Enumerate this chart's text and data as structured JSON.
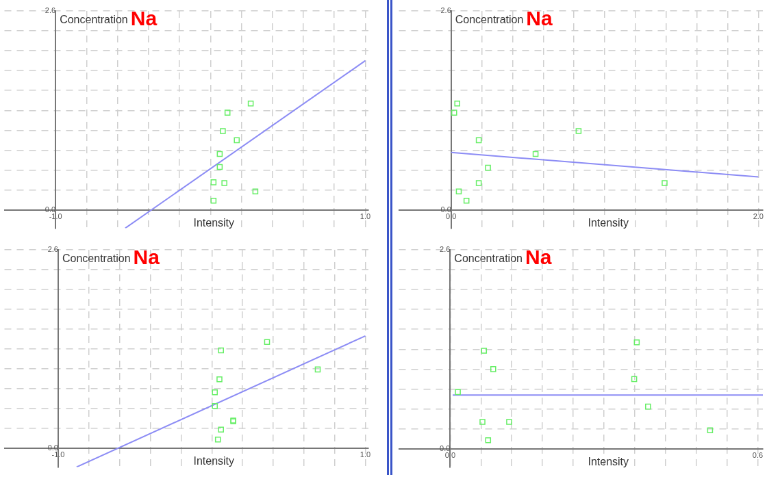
{
  "chart_data": [
    {
      "type": "scatter",
      "title": "Na",
      "xlabel": "Intensity",
      "ylabel": "Concentration",
      "grid": true,
      "xlim": [
        -1.33,
        1.02
      ],
      "ylim": [
        -0.24,
        2.6
      ],
      "xticks": [
        {
          "value": -1.0,
          "label": "-1.0"
        },
        {
          "value": -0.8,
          "label": null
        },
        {
          "value": -0.6,
          "label": null
        },
        {
          "value": -0.4,
          "label": null
        },
        {
          "value": -0.2,
          "label": null
        },
        {
          "value": 0,
          "label": null
        },
        {
          "value": 0.2,
          "label": null
        },
        {
          "value": 0.4,
          "label": null
        },
        {
          "value": 0.6,
          "label": null
        },
        {
          "value": 0.8,
          "label": null
        },
        {
          "value": 1.0,
          "label": "1.0"
        }
      ],
      "yticks": [
        {
          "value": 0,
          "label": "0.0"
        },
        {
          "value": 0.26,
          "label": null
        },
        {
          "value": 0.52,
          "label": null
        },
        {
          "value": 0.78,
          "label": null
        },
        {
          "value": 1.04,
          "label": null
        },
        {
          "value": 1.3,
          "label": null
        },
        {
          "value": 1.56,
          "label": null
        },
        {
          "value": 1.82,
          "label": null
        },
        {
          "value": 2.08,
          "label": null
        },
        {
          "value": 2.34,
          "label": null
        },
        {
          "value": 2.6,
          "label": "2.6"
        }
      ],
      "series": [
        {
          "type": "scatter",
          "marker": "square",
          "color": "#66ee66",
          "x": [
            0.26,
            0.11,
            0.08,
            0.17,
            0.06,
            0.06,
            0.02,
            0.09,
            0.29,
            0.02
          ],
          "values": [
            1.39,
            1.27,
            1.03,
            0.91,
            0.73,
            0.56,
            0.36,
            0.35,
            0.24,
            0.12
          ]
        },
        {
          "type": "line",
          "color": "#8c8cf5",
          "x": [
            -0.55,
            1.0
          ],
          "values": [
            -0.24,
            1.95
          ]
        }
      ]
    },
    {
      "type": "scatter",
      "title": "Na",
      "xlabel": "Intensity",
      "ylabel": "Concentration",
      "grid": true,
      "xlim": [
        -0.34,
        2.03
      ],
      "ylim": [
        -0.24,
        2.6
      ],
      "xticks": [
        {
          "value": 0,
          "label": "0.0"
        },
        {
          "value": 0.2,
          "label": null
        },
        {
          "value": 0.4,
          "label": null
        },
        {
          "value": 0.6,
          "label": null
        },
        {
          "value": 0.8,
          "label": null
        },
        {
          "value": 1.0,
          "label": null
        },
        {
          "value": 1.2,
          "label": null
        },
        {
          "value": 1.4,
          "label": null
        },
        {
          "value": 1.6,
          "label": null
        },
        {
          "value": 1.8,
          "label": null
        },
        {
          "value": 2.0,
          "label": "2.0"
        }
      ],
      "yticks": [
        {
          "value": 0,
          "label": "0.0"
        },
        {
          "value": 0.26,
          "label": null
        },
        {
          "value": 0.52,
          "label": null
        },
        {
          "value": 0.78,
          "label": null
        },
        {
          "value": 1.04,
          "label": null
        },
        {
          "value": 1.3,
          "label": null
        },
        {
          "value": 1.56,
          "label": null
        },
        {
          "value": 1.82,
          "label": null
        },
        {
          "value": 2.08,
          "label": null
        },
        {
          "value": 2.34,
          "label": null
        },
        {
          "value": 2.6,
          "label": "2.6"
        }
      ],
      "series": [
        {
          "type": "scatter",
          "marker": "square",
          "color": "#66ee66",
          "x": [
            0.04,
            0.02,
            0.18,
            0.83,
            0.55,
            0.24,
            0.18,
            1.39,
            0.05,
            0.1
          ],
          "values": [
            1.39,
            1.27,
            0.91,
            1.03,
            0.73,
            0.55,
            0.35,
            0.35,
            0.24,
            0.12
          ]
        },
        {
          "type": "line",
          "color": "#8c8cf5",
          "x": [
            0.0,
            2.0
          ],
          "values": [
            0.75,
            0.43
          ]
        }
      ]
    },
    {
      "type": "scatter",
      "title": "Na",
      "xlabel": "Intensity",
      "ylabel": "Concentration",
      "grid": true,
      "xlim": [
        -1.35,
        1.02
      ],
      "ylim": [
        -0.25,
        2.6
      ],
      "xticks": [
        {
          "value": -1.0,
          "label": "-1.0"
        },
        {
          "value": -0.8,
          "label": null
        },
        {
          "value": -0.6,
          "label": null
        },
        {
          "value": -0.4,
          "label": null
        },
        {
          "value": -0.2,
          "label": null
        },
        {
          "value": 0,
          "label": null
        },
        {
          "value": 0.2,
          "label": null
        },
        {
          "value": 0.4,
          "label": null
        },
        {
          "value": 0.6,
          "label": null
        },
        {
          "value": 0.8,
          "label": null
        },
        {
          "value": 1.0,
          "label": "1.0"
        }
      ],
      "yticks": [
        {
          "value": 0,
          "label": "0.0"
        },
        {
          "value": 0.26,
          "label": null
        },
        {
          "value": 0.52,
          "label": null
        },
        {
          "value": 0.78,
          "label": null
        },
        {
          "value": 1.04,
          "label": null
        },
        {
          "value": 1.3,
          "label": null
        },
        {
          "value": 1.56,
          "label": null
        },
        {
          "value": 1.82,
          "label": null
        },
        {
          "value": 2.08,
          "label": null
        },
        {
          "value": 2.34,
          "label": null
        },
        {
          "value": 2.6,
          "label": "2.6"
        }
      ],
      "series": [
        {
          "type": "scatter",
          "marker": "square",
          "color": "#66ee66",
          "x": [
            0.36,
            0.06,
            0.69,
            0.05,
            0.02,
            0.02,
            0.14,
            0.14,
            0.06,
            0.04
          ],
          "values": [
            1.39,
            1.28,
            1.03,
            0.9,
            0.73,
            0.55,
            0.36,
            0.35,
            0.24,
            0.11
          ]
        },
        {
          "type": "line",
          "color": "#8c8cf5",
          "x": [
            -0.88,
            1.0
          ],
          "values": [
            -0.25,
            1.47
          ]
        }
      ]
    },
    {
      "type": "scatter",
      "title": "Na",
      "xlabel": "Intensity",
      "ylabel": "Concentration",
      "grid": true,
      "xlim": [
        -0.1,
        0.61
      ],
      "ylim": [
        -0.24,
        2.6
      ],
      "xticks": [
        {
          "value": 0,
          "label": "0.0"
        },
        {
          "value": 0.06,
          "label": null
        },
        {
          "value": 0.12,
          "label": null
        },
        {
          "value": 0.18,
          "label": null
        },
        {
          "value": 0.24,
          "label": null
        },
        {
          "value": 0.3,
          "label": null
        },
        {
          "value": 0.36,
          "label": null
        },
        {
          "value": 0.42,
          "label": null
        },
        {
          "value": 0.48,
          "label": null
        },
        {
          "value": 0.54,
          "label": null
        },
        {
          "value": 0.6,
          "label": "0.6"
        }
      ],
      "yticks": [
        {
          "value": 0,
          "label": "0.0"
        },
        {
          "value": 0.26,
          "label": null
        },
        {
          "value": 0.52,
          "label": null
        },
        {
          "value": 0.78,
          "label": null
        },
        {
          "value": 1.04,
          "label": null
        },
        {
          "value": 1.3,
          "label": null
        },
        {
          "value": 1.56,
          "label": null
        },
        {
          "value": 1.82,
          "label": null
        },
        {
          "value": 2.08,
          "label": null
        },
        {
          "value": 2.34,
          "label": null
        },
        {
          "value": 2.6,
          "label": "2.6"
        }
      ],
      "series": [
        {
          "type": "scatter",
          "marker": "square",
          "color": "#66ee66",
          "x": [
            0.015,
            0.066,
            0.084,
            0.364,
            0.359,
            0.386,
            0.063,
            0.115,
            0.507,
            0.074
          ],
          "values": [
            0.74,
            1.28,
            1.04,
            1.39,
            0.91,
            0.55,
            0.35,
            0.35,
            0.24,
            0.11
          ]
        },
        {
          "type": "line",
          "color": "#8c8cf5",
          "x": [
            0.005,
            0.61
          ],
          "values": [
            0.7,
            0.7
          ]
        }
      ]
    }
  ]
}
